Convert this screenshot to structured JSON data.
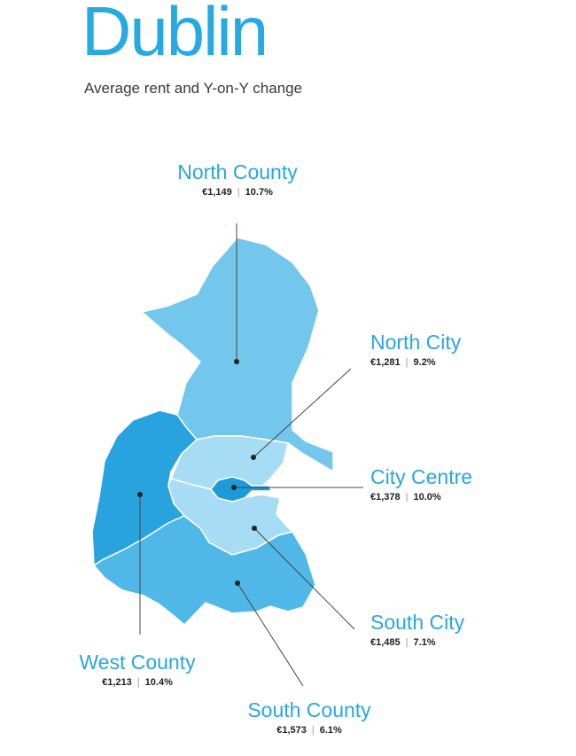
{
  "header": {
    "title": "Dublin",
    "subtitle": "Average rent and Y-on-Y change"
  },
  "colors": {
    "title": "#27a9e1",
    "north_county": "#74c7ec",
    "north_city": "#a6dcf4",
    "city_centre": "#1c9ad9",
    "south_city": "#a6dcf4",
    "south_county": "#4fb8e8",
    "west_county": "#29a3de"
  },
  "regions": [
    {
      "key": "north_county",
      "name": "North County",
      "rent": "€1,149",
      "change": "10.7%"
    },
    {
      "key": "north_city",
      "name": "North City",
      "rent": "€1,281",
      "change": "9.2%"
    },
    {
      "key": "city_centre",
      "name": "City Centre",
      "rent": "€1,378",
      "change": "10.0%"
    },
    {
      "key": "south_city",
      "name": "South City",
      "rent": "€1,485",
      "change": "7.1%"
    },
    {
      "key": "west_county",
      "name": "West County",
      "rent": "€1,213",
      "change": "10.4%"
    },
    {
      "key": "south_county",
      "name": "South County",
      "rent": "€1,573",
      "change": "6.1%"
    }
  ]
}
